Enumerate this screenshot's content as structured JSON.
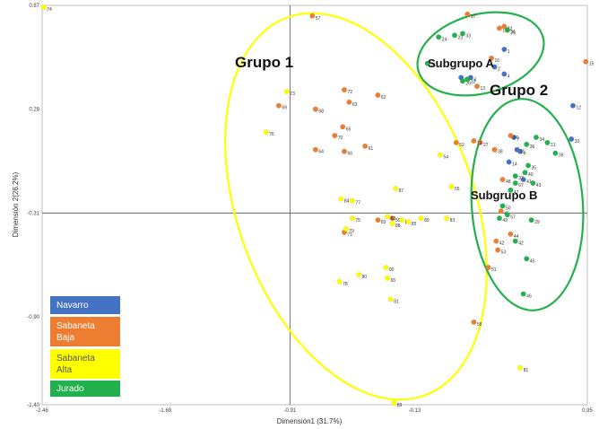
{
  "chart_data": {
    "type": "scatter",
    "xlabel": "Dimensión1 (31.7%)",
    "ylabel": "Dimensión 2(26.2%)",
    "xlim": [
      -2.46,
      0.95
    ],
    "ylim": [
      -1.4,
      0.87
    ],
    "x_ticks": [
      "-2.46",
      "-1.69",
      "-0.91",
      "-0.13",
      "0.95"
    ],
    "y_ticks": [
      "0.87",
      "0.28",
      "-0.31",
      "-0.90",
      "-1.40"
    ],
    "x_tick_values": [
      -2.46,
      -1.69,
      -0.91,
      -0.13,
      0.95
    ],
    "y_tick_values": [
      0.87,
      0.28,
      -0.31,
      -0.9,
      -1.4
    ],
    "reference_lines": {
      "x": -0.91,
      "y": -0.31
    },
    "groups": [
      {
        "label": "Grupo 1",
        "color": "#ffff00"
      },
      {
        "label": "Grupo 2",
        "color": "#22b14c"
      },
      {
        "label": "Subgrupo A",
        "color": "#22b14c"
      },
      {
        "label": "Subgrupo B",
        "color": "#22b14c"
      }
    ],
    "series": [
      {
        "name": "Navarro",
        "color": "#4472c4",
        "points": [
          {
            "x": 0.43,
            "y": 0.62,
            "label": "1"
          },
          {
            "x": 0.37,
            "y": 0.52,
            "label": "2"
          },
          {
            "x": 0.22,
            "y": 0.46,
            "label": "3"
          },
          {
            "x": 0.43,
            "y": 0.48,
            "label": "4"
          },
          {
            "x": 0.49,
            "y": 0.12,
            "label": "7"
          },
          {
            "x": 0.53,
            "y": 0.04,
            "label": "9"
          },
          {
            "x": 0.85,
            "y": 0.11,
            "label": "10"
          },
          {
            "x": 0.51,
            "y": 0.05,
            "label": "11"
          },
          {
            "x": 0.86,
            "y": 0.3,
            "label": "12"
          },
          {
            "x": 0.16,
            "y": 0.46,
            "label": "20"
          },
          {
            "x": 0.46,
            "y": -0.02,
            "label": "14"
          },
          {
            "x": 0.55,
            "y": -0.12,
            "label": "41"
          }
        ]
      },
      {
        "name": "Sabaneta Baja",
        "color": "#ed7d31",
        "points": [
          {
            "x": -0.77,
            "y": 0.81,
            "label": "57"
          },
          {
            "x": 0.2,
            "y": 0.82,
            "label": "17"
          },
          {
            "x": 0.4,
            "y": 0.74,
            "label": "18"
          },
          {
            "x": 0.45,
            "y": 0.73,
            "label": "21"
          },
          {
            "x": 0.43,
            "y": 0.75,
            "label": "22"
          },
          {
            "x": 0.35,
            "y": 0.57,
            "label": "16"
          },
          {
            "x": 0.94,
            "y": 0.55,
            "label": "15"
          },
          {
            "x": 0.26,
            "y": 0.41,
            "label": "13"
          },
          {
            "x": -0.57,
            "y": 0.39,
            "label": "72"
          },
          {
            "x": -0.54,
            "y": 0.32,
            "label": "63"
          },
          {
            "x": -0.36,
            "y": 0.36,
            "label": "62"
          },
          {
            "x": -0.98,
            "y": 0.3,
            "label": "69"
          },
          {
            "x": -0.75,
            "y": 0.28,
            "label": "68"
          },
          {
            "x": -0.58,
            "y": 0.18,
            "label": "65"
          },
          {
            "x": -0.63,
            "y": 0.13,
            "label": "70"
          },
          {
            "x": -0.57,
            "y": 0.04,
            "label": "66"
          },
          {
            "x": -0.75,
            "y": 0.05,
            "label": "64"
          },
          {
            "x": -0.44,
            "y": 0.07,
            "label": "61"
          },
          {
            "x": 0.13,
            "y": 0.09,
            "label": "52"
          },
          {
            "x": 0.28,
            "y": 0.09,
            "label": "27"
          },
          {
            "x": 0.37,
            "y": 0.05,
            "label": "38"
          },
          {
            "x": 0.24,
            "y": 0.1,
            "label": "19"
          },
          {
            "x": 0.47,
            "y": 0.13,
            "label": "80"
          },
          {
            "x": 0.42,
            "y": -0.12,
            "label": "48"
          },
          {
            "x": 0.41,
            "y": -0.3,
            "label": "45"
          },
          {
            "x": -0.57,
            "y": -0.42,
            "label": "71"
          },
          {
            "x": -0.36,
            "y": -0.35,
            "label": "83"
          },
          {
            "x": -0.27,
            "y": -0.34,
            "label": "59"
          },
          {
            "x": 0.39,
            "y": -0.52,
            "label": "53"
          },
          {
            "x": 0.33,
            "y": -0.62,
            "label": "51"
          },
          {
            "x": 0.38,
            "y": -0.47,
            "label": "42"
          },
          {
            "x": 0.47,
            "y": -0.43,
            "label": "44"
          },
          {
            "x": 0.24,
            "y": -0.93,
            "label": "58"
          }
        ]
      },
      {
        "name": "Sabaneta Alta",
        "color": "#ffff00",
        "points": [
          {
            "x": -2.45,
            "y": 0.86,
            "label": "74"
          },
          {
            "x": -0.93,
            "y": 0.38,
            "label": "73"
          },
          {
            "x": -1.06,
            "y": 0.15,
            "label": "76"
          },
          {
            "x": -0.59,
            "y": -0.23,
            "label": "84"
          },
          {
            "x": -0.52,
            "y": -0.24,
            "label": "77"
          },
          {
            "x": -0.52,
            "y": -0.34,
            "label": "75"
          },
          {
            "x": -0.56,
            "y": -0.4,
            "label": "79"
          },
          {
            "x": -0.27,
            "y": -0.37,
            "label": "88"
          },
          {
            "x": -0.3,
            "y": -0.33,
            "label": "82"
          },
          {
            "x": -0.21,
            "y": -0.35,
            "label": "86"
          },
          {
            "x": -0.17,
            "y": -0.36,
            "label": "85"
          },
          {
            "x": -0.09,
            "y": -0.34,
            "label": "89"
          },
          {
            "x": 0.07,
            "y": -0.34,
            "label": "83"
          },
          {
            "x": -0.25,
            "y": -0.17,
            "label": "87"
          },
          {
            "x": 0.1,
            "y": -0.16,
            "label": "55"
          },
          {
            "x": 0.03,
            "y": 0.02,
            "label": "54"
          },
          {
            "x": -0.6,
            "y": -0.7,
            "label": "78"
          },
          {
            "x": -0.48,
            "y": -0.66,
            "label": "80"
          },
          {
            "x": -0.31,
            "y": -0.62,
            "label": "90"
          },
          {
            "x": -0.3,
            "y": -0.68,
            "label": "65"
          },
          {
            "x": -0.28,
            "y": -0.8,
            "label": "81"
          },
          {
            "x": -0.26,
            "y": -1.39,
            "label": "89"
          },
          {
            "x": 0.53,
            "y": -1.19,
            "label": "81"
          }
        ]
      },
      {
        "name": "Jurado",
        "color": "#22b14c",
        "points": [
          {
            "x": 0.02,
            "y": 0.69,
            "label": "24"
          },
          {
            "x": 0.12,
            "y": 0.7,
            "label": "23"
          },
          {
            "x": 0.17,
            "y": 0.71,
            "label": "33"
          },
          {
            "x": 0.45,
            "y": 0.73,
            "label": "36"
          },
          {
            "x": -0.05,
            "y": 0.54,
            "label": "25"
          },
          {
            "x": 0.17,
            "y": 0.44,
            "label": "26"
          },
          {
            "x": 0.2,
            "y": 0.45,
            "label": "32"
          },
          {
            "x": 0.63,
            "y": 0.12,
            "label": "34"
          },
          {
            "x": 0.7,
            "y": 0.09,
            "label": "31"
          },
          {
            "x": 0.57,
            "y": 0.08,
            "label": "36"
          },
          {
            "x": 0.75,
            "y": 0.03,
            "label": "39"
          },
          {
            "x": 0.58,
            "y": -0.04,
            "label": "35"
          },
          {
            "x": 0.56,
            "y": -0.08,
            "label": "40"
          },
          {
            "x": 0.5,
            "y": -0.1,
            "label": "37"
          },
          {
            "x": 0.61,
            "y": -0.14,
            "label": "43"
          },
          {
            "x": 0.5,
            "y": -0.14,
            "label": "67"
          },
          {
            "x": 0.47,
            "y": -0.18,
            "label": "47"
          },
          {
            "x": 0.42,
            "y": -0.27,
            "label": "50"
          },
          {
            "x": 0.45,
            "y": -0.32,
            "label": "57"
          },
          {
            "x": 0.4,
            "y": -0.34,
            "label": "49"
          },
          {
            "x": 0.6,
            "y": -0.35,
            "label": "29"
          },
          {
            "x": 0.5,
            "y": -0.47,
            "label": "42"
          },
          {
            "x": 0.57,
            "y": -0.57,
            "label": "45"
          },
          {
            "x": 0.55,
            "y": -0.77,
            "label": "46"
          }
        ]
      }
    ]
  },
  "legend": {
    "items": [
      {
        "label": "Navarro",
        "color": "#4472c4"
      },
      {
        "label": "Sabaneta Baja",
        "color": "#ed7d31"
      },
      {
        "label": "Sabaneta Alta",
        "color": "#ffff00"
      },
      {
        "label": "Jurado",
        "color": "#22b14c"
      }
    ]
  }
}
